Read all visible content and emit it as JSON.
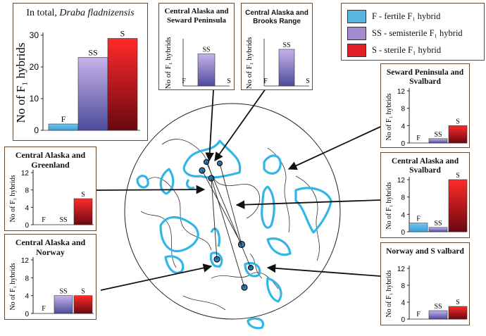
{
  "legend": {
    "items": [
      {
        "label": "F - fertile F₁ hybrid",
        "color": "#5ab4e0"
      },
      {
        "label": "SS - semisterile F₁ hybrid",
        "color": "#a48bd0"
      },
      {
        "label": "S - sterile F₁ hybrid",
        "color": "#e01e26"
      }
    ]
  },
  "colors": {
    "fertile": "#5ab4e0",
    "semisterile": "#a48bd0",
    "sterile": "#e01e26",
    "distribution": "#33b5e5",
    "frame": "#6b4a32"
  },
  "chart_data": [
    {
      "id": "total",
      "type": "bar",
      "title_prefix": "In total, ",
      "title_species": "Draba fladnizensis",
      "ylabel": "No of F₁ hybrids",
      "ylim": [
        0,
        30
      ],
      "yticks": [
        0,
        10,
        20,
        30
      ],
      "categories": [
        "F",
        "SS",
        "S"
      ],
      "values": [
        2,
        23,
        29
      ]
    },
    {
      "id": "ca_sp",
      "type": "bar",
      "title": "Central Alaska and Seward Peninsula",
      "ylabel": "No of F₁ hybrids",
      "categories": [
        "F",
        "SS",
        "S"
      ],
      "values": [
        0,
        7,
        0
      ]
    },
    {
      "id": "ca_br",
      "type": "bar",
      "title": "Central Alaska and Brooks Range",
      "ylabel": "No of F₁ hybrids",
      "categories": [
        "F",
        "SS",
        "S"
      ],
      "values": [
        0,
        8,
        0
      ]
    },
    {
      "id": "sp_sv",
      "type": "bar",
      "title": "Seward Peninsula and Svalbard",
      "ylabel": "No of F₁ hybrids",
      "ylim": [
        0,
        12
      ],
      "yticks": [
        0,
        4,
        8,
        12
      ],
      "categories": [
        "F",
        "SS",
        "S"
      ],
      "values": [
        0,
        1,
        4
      ]
    },
    {
      "id": "ca_sv",
      "type": "bar",
      "title": "Central Alaska and Svalbard",
      "ylabel": "No of F₁ hybrids",
      "ylim": [
        0,
        12
      ],
      "yticks": [
        0,
        4,
        8,
        12
      ],
      "categories": [
        "F",
        "SS",
        "S"
      ],
      "values": [
        2,
        1,
        12
      ]
    },
    {
      "id": "no_sv",
      "type": "bar",
      "title": "Norway and S valbard",
      "ylabel": "No of F₁ hybrids",
      "ylim": [
        0,
        12
      ],
      "yticks": [
        0,
        4,
        8,
        12
      ],
      "categories": [
        "F",
        "SS",
        "S"
      ],
      "values": [
        0,
        2,
        3
      ]
    },
    {
      "id": "ca_gr",
      "type": "bar",
      "title": "Central Alaska and Greenland",
      "ylabel": "No of F₁ hybrids",
      "ylim": [
        0,
        12
      ],
      "yticks": [
        0,
        4,
        8,
        12
      ],
      "categories": [
        "F",
        "SS",
        "S"
      ],
      "values": [
        0,
        0,
        6
      ]
    },
    {
      "id": "ca_no",
      "type": "bar",
      "title": "Central Alaska and Norway",
      "ylabel": "No of F₁ hybrids",
      "ylim": [
        0,
        12
      ],
      "yticks": [
        0,
        4,
        8,
        12
      ],
      "categories": [
        "F",
        "SS",
        "S"
      ],
      "values": [
        0,
        4,
        4
      ]
    }
  ]
}
